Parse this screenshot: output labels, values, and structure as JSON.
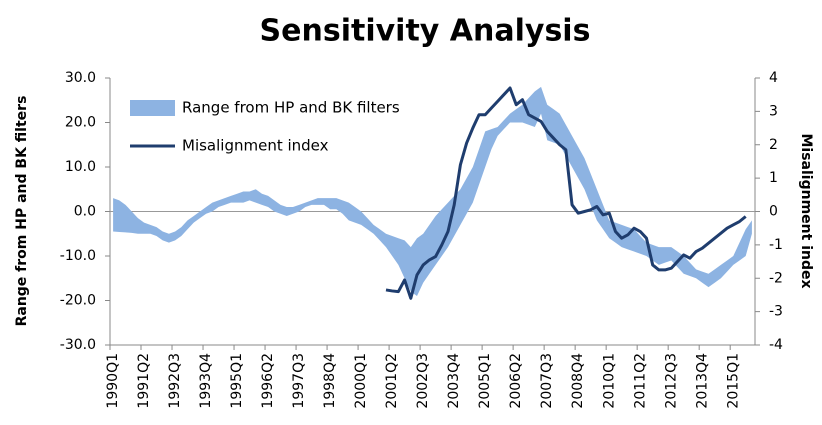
{
  "chart_data": {
    "type": "band-line",
    "title": "Sensitivity Analysis",
    "y_label": "Range from HP and BK filters",
    "y2_label": "Misalignment index",
    "categories": [
      "1990Q1",
      null,
      null,
      null,
      null,
      "1991Q2",
      null,
      null,
      null,
      null,
      "1992Q3",
      null,
      null,
      null,
      null,
      "1993Q4",
      null,
      null,
      null,
      null,
      "1995Q1",
      null,
      null,
      null,
      null,
      "1996Q2",
      null,
      null,
      null,
      null,
      "1997Q3",
      null,
      null,
      null,
      null,
      "1998Q4",
      null,
      null,
      null,
      null,
      "2000Q1",
      null,
      null,
      null,
      null,
      "2001Q2",
      null,
      null,
      null,
      null,
      "2002Q3",
      null,
      null,
      null,
      null,
      "2003Q4",
      null,
      null,
      null,
      null,
      "2005Q1",
      null,
      null,
      null,
      null,
      "2006Q2",
      null,
      null,
      null,
      null,
      "2007Q3",
      null,
      null,
      null,
      null,
      "2008Q4",
      null,
      null,
      null,
      null,
      "2010Q1",
      null,
      null,
      null,
      null,
      "2011Q2",
      null,
      null,
      null,
      null,
      "2012Q3",
      null,
      null,
      null,
      null,
      "2013Q4",
      null,
      null,
      null,
      null,
      "2015Q1",
      null,
      null,
      null
    ],
    "series": [
      {
        "name": "Range from HP and BK filters",
        "color": "#8db3e2",
        "high": [
          3,
          2.5,
          1.5,
          0,
          -1.5,
          -2.5,
          -3,
          -3.5,
          -4.5,
          -5,
          -4.5,
          -3.5,
          -2,
          -1,
          0,
          1,
          2,
          2.5,
          3,
          3.5,
          4,
          4.5,
          4.5,
          5,
          4,
          3.5,
          2.5,
          1.5,
          1,
          1,
          1.5,
          2,
          2.5,
          3,
          3,
          3,
          3,
          2.5,
          2,
          1,
          0,
          -1.5,
          -3,
          -4,
          -5,
          -5.5,
          -6,
          -6.5,
          -8,
          -6,
          -5,
          -3,
          -1,
          0.5,
          2,
          3.5,
          5,
          7.5,
          10,
          14,
          18,
          18.5,
          19,
          20.5,
          22,
          23,
          24,
          25.5,
          27,
          28,
          24,
          23,
          22,
          19.5,
          17,
          14.5,
          12,
          8.5,
          5,
          1.5,
          -2,
          -2.5,
          -3,
          -3.5,
          -4,
          -5.5,
          -7,
          -7.5,
          -8,
          -8,
          -8,
          -9,
          -10,
          -11.5,
          -13,
          -13.5,
          -14,
          -13,
          -12,
          -11,
          -10,
          -7,
          -4,
          -2
        ],
        "low": [
          -4.5,
          -4.6,
          -4.7,
          -4.8,
          -5,
          -5,
          -5,
          -5.5,
          -6.5,
          -7,
          -6.5,
          -5.5,
          -4,
          -2.5,
          -1.5,
          -0.5,
          0,
          1,
          1.5,
          2,
          2,
          2,
          2.5,
          2,
          1.5,
          1,
          0,
          -0.5,
          -1,
          -0.5,
          0,
          1,
          1.5,
          1.5,
          1.5,
          0.5,
          0.5,
          -0.5,
          -2,
          -2.5,
          -3,
          -4,
          -5,
          -6.5,
          -8,
          -10,
          -12,
          -15,
          -18,
          -19,
          -16,
          -14,
          -12,
          -10,
          -8,
          -5.5,
          -3,
          -0.5,
          2,
          6,
          10,
          14,
          17,
          18.5,
          20,
          20,
          20,
          19.5,
          19,
          22,
          16,
          15.5,
          15,
          12.5,
          10,
          7.5,
          5,
          1.5,
          -2,
          -4,
          -6,
          -7,
          -8,
          -8.5,
          -9,
          -9.5,
          -10,
          -11,
          -12,
          -11.5,
          -11,
          -12.5,
          -14,
          -14.5,
          -15,
          -16,
          -17,
          -16,
          -15,
          -13.5,
          -12,
          -11,
          -10,
          -5
        ]
      },
      {
        "name": "Misalignment index",
        "color": "#1f3d6e",
        "axis": "y2",
        "values": [
          null,
          null,
          null,
          null,
          null,
          null,
          null,
          null,
          null,
          null,
          null,
          null,
          null,
          null,
          null,
          null,
          null,
          null,
          null,
          null,
          null,
          null,
          null,
          null,
          null,
          null,
          null,
          null,
          null,
          null,
          null,
          null,
          null,
          null,
          null,
          null,
          null,
          null,
          null,
          null,
          null,
          null,
          null,
          null,
          -2.35,
          -2.38,
          -2.4,
          -2.05,
          -2.6,
          -1.9,
          -1.6,
          -1.45,
          -1.35,
          -1.0,
          -0.6,
          0.2,
          1.4,
          2.05,
          2.5,
          2.9,
          2.9,
          3.1,
          3.3,
          3.5,
          3.7,
          3.2,
          3.35,
          2.9,
          2.8,
          2.7,
          2.4,
          2.2,
          2.0,
          1.85,
          0.2,
          -0.05,
          0.0,
          0.05,
          0.15,
          -0.1,
          -0.05,
          -0.6,
          -0.8,
          -0.7,
          -0.5,
          -0.6,
          -0.8,
          -1.6,
          -1.75,
          -1.75,
          -1.7,
          -1.5,
          -1.3,
          -1.4,
          -1.2,
          -1.1,
          -0.95,
          -0.8,
          -0.65,
          -0.5,
          -0.4,
          -0.3,
          -0.15,
          null
        ]
      }
    ],
    "ylim": [
      -30,
      30
    ],
    "yticks": [
      {
        "value": -30,
        "label": "-30.0"
      },
      {
        "value": -20,
        "label": "-20.0"
      },
      {
        "value": -10,
        "label": "-10.0"
      },
      {
        "value": 0,
        "label": "0.0"
      },
      {
        "value": 10,
        "label": "10.0"
      },
      {
        "value": 20,
        "label": "20.0"
      },
      {
        "value": 30,
        "label": "30.0"
      }
    ],
    "y2lim": [
      -4,
      4
    ],
    "y2ticks": [
      -4,
      -3,
      -2,
      -1,
      0,
      1,
      2,
      3,
      4
    ],
    "legend": "top-left"
  }
}
